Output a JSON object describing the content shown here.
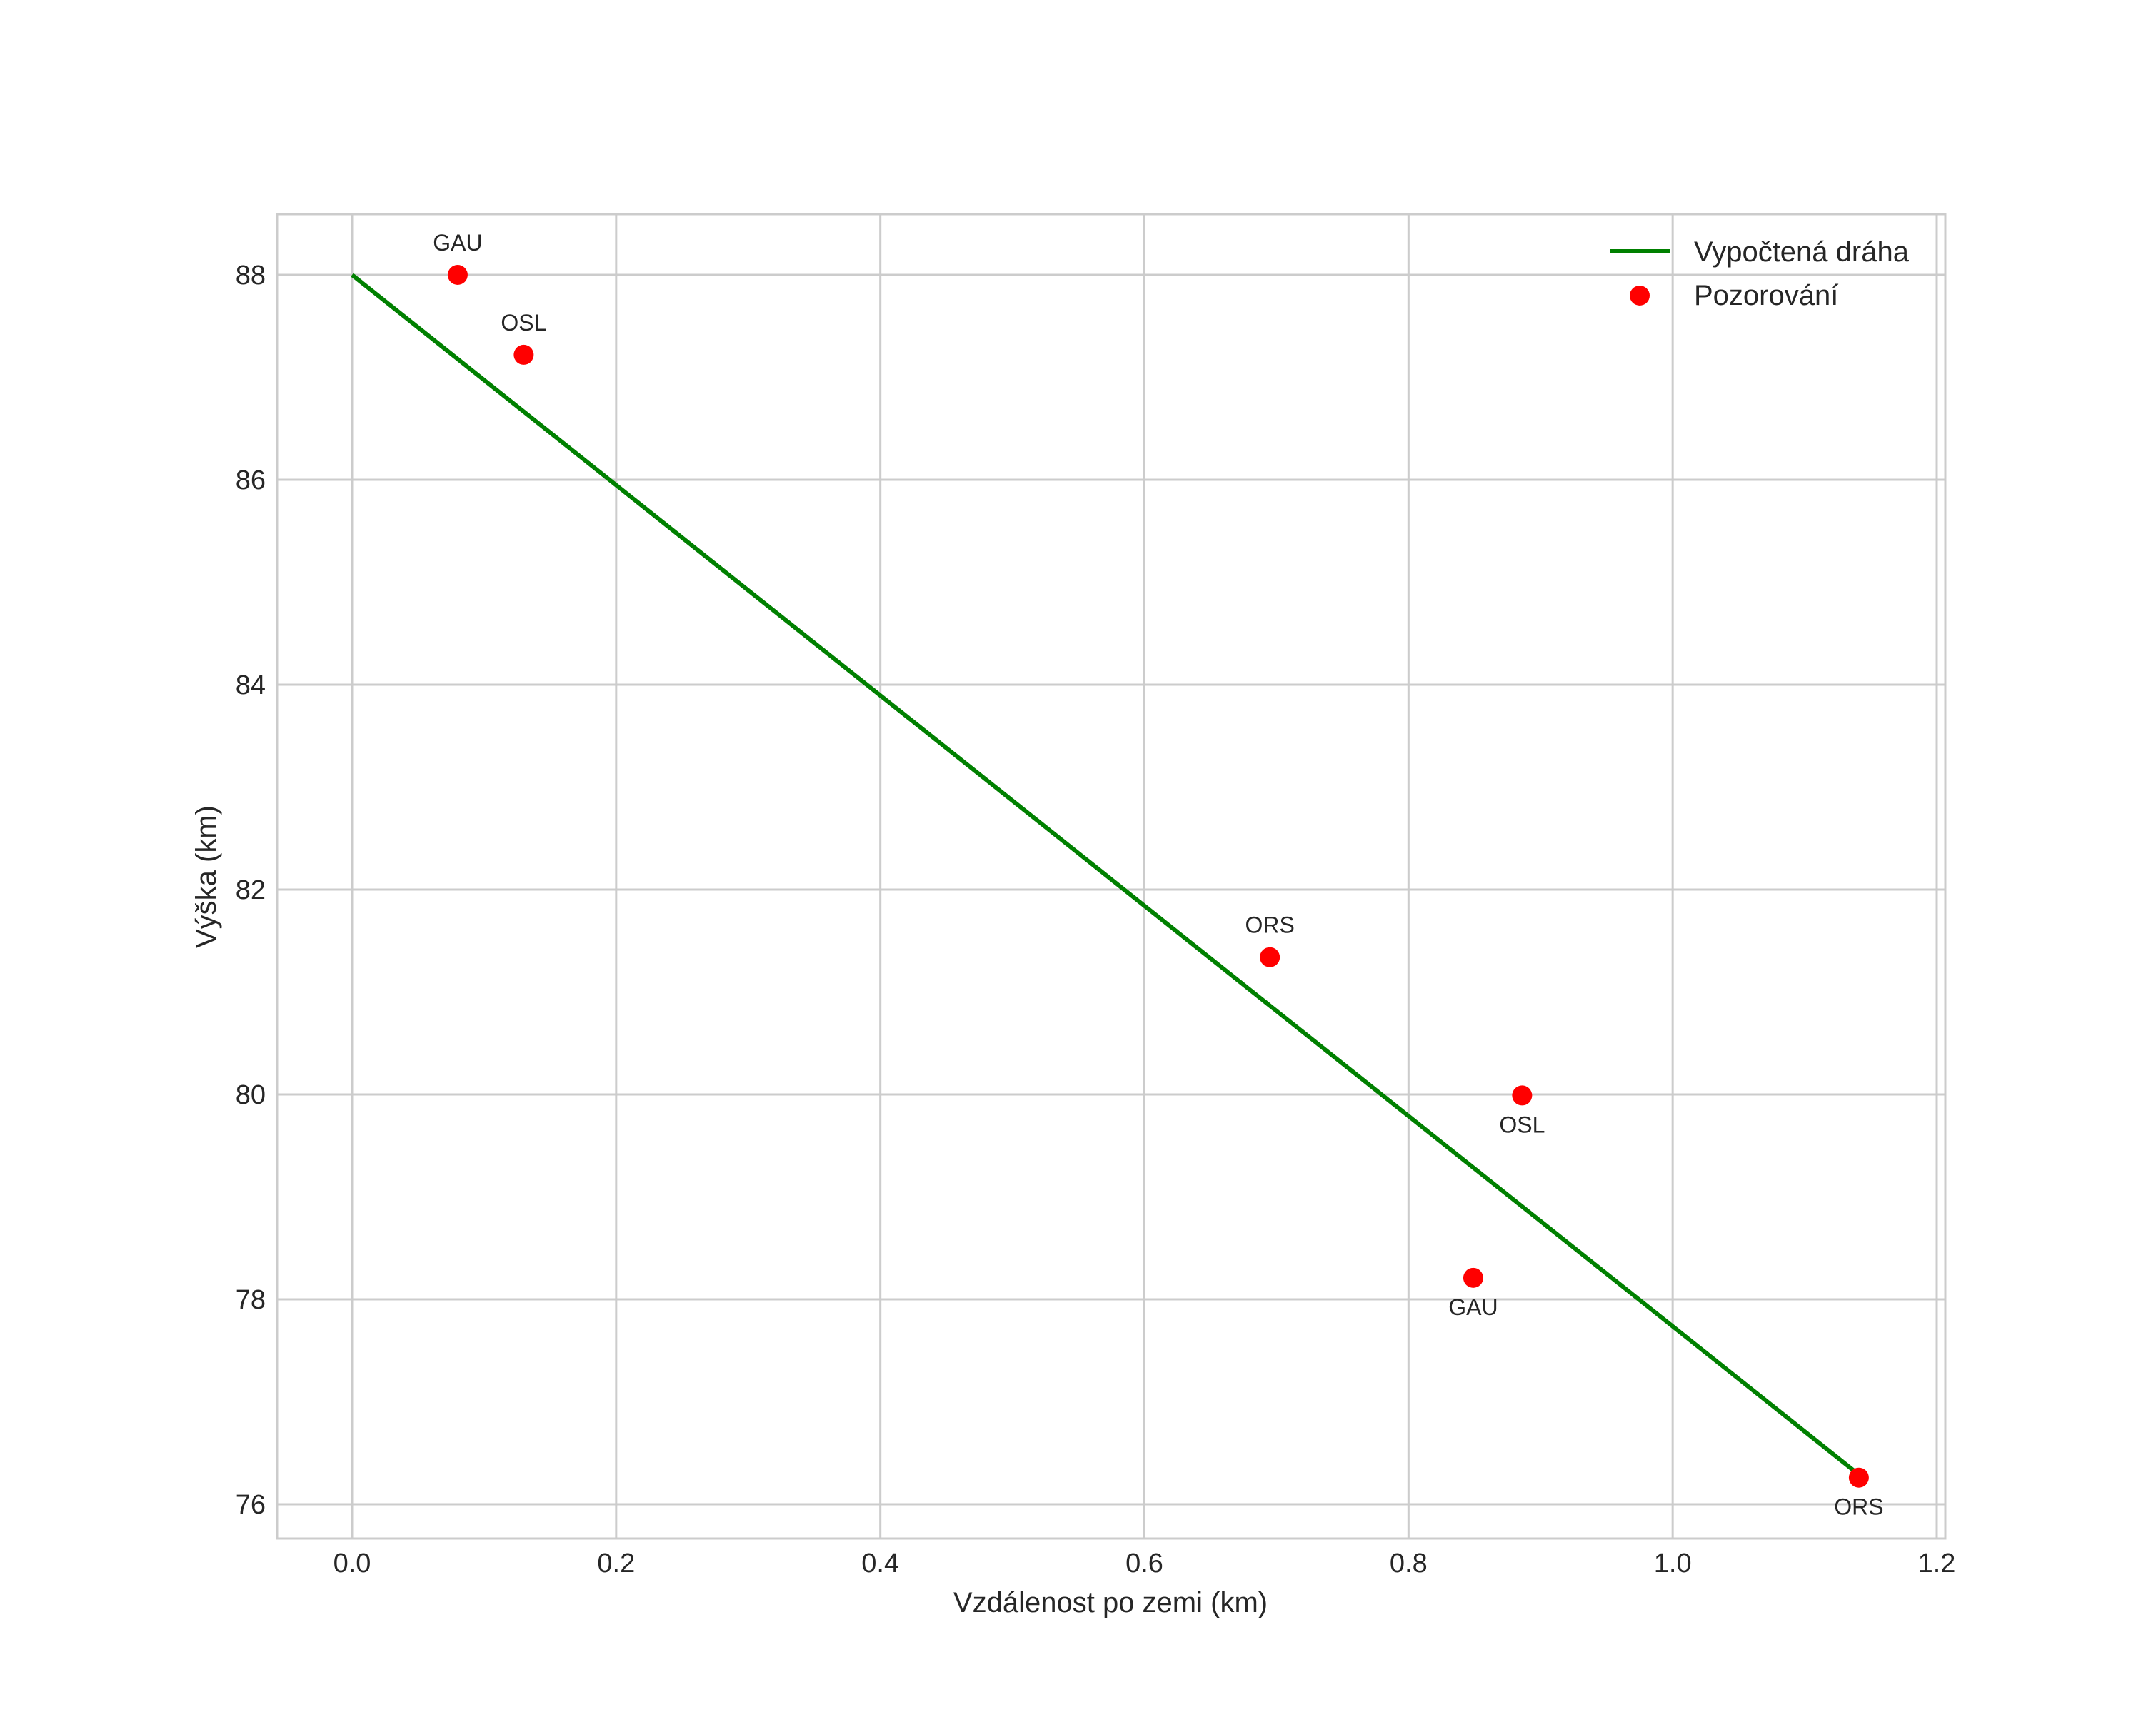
{
  "chart_data": {
    "type": "line",
    "title": "",
    "xlabel": "Vzdálenost po zemi (km)",
    "ylabel": "Výška (km)",
    "xlim": [
      -0.057,
      1.206
    ],
    "ylim": [
      75.65,
      88.6
    ],
    "xticks": [
      "0.0",
      "0.2",
      "0.4",
      "0.6",
      "0.8",
      "1.0",
      "1.2"
    ],
    "yticks": [
      "76",
      "78",
      "80",
      "82",
      "84",
      "86",
      "88"
    ],
    "grid": true,
    "legend_position": "upper right",
    "series": [
      {
        "name": "Vypočtená dráha",
        "type": "line",
        "color": "#008000",
        "x": [
          0.0,
          1.14
        ],
        "y": [
          88.0,
          76.3
        ]
      },
      {
        "name": "Pozorování",
        "type": "scatter",
        "color": "#ff0000",
        "points": [
          {
            "label": "GAU",
            "x": 0.08,
            "y": 88.0,
            "label_pos": "above"
          },
          {
            "label": "OSL",
            "x": 0.13,
            "y": 87.22,
            "label_pos": "above"
          },
          {
            "label": "ORS",
            "x": 0.695,
            "y": 81.34,
            "label_pos": "above"
          },
          {
            "label": "OSL",
            "x": 0.886,
            "y": 79.99,
            "label_pos": "below"
          },
          {
            "label": "GAU",
            "x": 0.849,
            "y": 78.21,
            "label_pos": "below"
          },
          {
            "label": "ORS",
            "x": 1.141,
            "y": 76.26,
            "label_pos": "below"
          }
        ]
      }
    ]
  },
  "legend": {
    "items": [
      {
        "label": "Vypočtená dráha",
        "kind": "line",
        "color": "#008000"
      },
      {
        "label": "Pozorování",
        "kind": "marker",
        "color": "#ff0000"
      }
    ]
  }
}
